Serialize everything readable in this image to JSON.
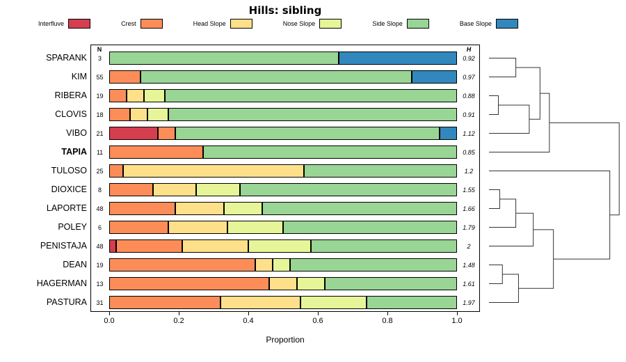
{
  "chart_data": {
    "type": "bar",
    "orientation": "horizontal",
    "stacked": true,
    "title": "Hills: sibling",
    "xlabel": "Proportion",
    "xlim": [
      0,
      1
    ],
    "x_ticks": [
      "0.0",
      "0.2",
      "0.4",
      "0.6",
      "0.8",
      "1.0"
    ],
    "n_header": "N",
    "h_header": "H",
    "legend": [
      {
        "label": "Interfluve",
        "color": "#D53E4F"
      },
      {
        "label": "Crest",
        "color": "#FC8D59"
      },
      {
        "label": "Head Slope",
        "color": "#FEE08B"
      },
      {
        "label": "Nose Slope",
        "color": "#E6F598"
      },
      {
        "label": "Side Slope",
        "color": "#99D594"
      },
      {
        "label": "Base Slope",
        "color": "#3288BD"
      }
    ],
    "categories_note": "values are proportions per legend order: Interfluve, Crest, Head Slope, Nose Slope, Side Slope, Base Slope",
    "rows": [
      {
        "label": "SPARANK",
        "n": 3,
        "h": "0.92",
        "bold": false,
        "values": [
          0,
          0,
          0,
          0,
          0.66,
          0.34
        ]
      },
      {
        "label": "KIM",
        "n": 55,
        "h": "0.97",
        "bold": false,
        "values": [
          0,
          0.09,
          0,
          0,
          0.78,
          0.13
        ]
      },
      {
        "label": "RIBERA",
        "n": 19,
        "h": "0.88",
        "bold": false,
        "values": [
          0,
          0.05,
          0.05,
          0.06,
          0.84,
          0
        ]
      },
      {
        "label": "CLOVIS",
        "n": 18,
        "h": "0.91",
        "bold": false,
        "values": [
          0,
          0.06,
          0.05,
          0.06,
          0.83,
          0
        ]
      },
      {
        "label": "VIBO",
        "n": 21,
        "h": "1.12",
        "bold": false,
        "values": [
          0.14,
          0.05,
          0,
          0,
          0.76,
          0.05
        ]
      },
      {
        "label": "TAPIA",
        "n": 11,
        "h": "0.85",
        "bold": true,
        "values": [
          0,
          0.27,
          0,
          0,
          0.73,
          0
        ]
      },
      {
        "label": "TULOSO",
        "n": 25,
        "h": "1.2",
        "bold": false,
        "values": [
          0,
          0.04,
          0.52,
          0,
          0.44,
          0
        ]
      },
      {
        "label": "DIOXICE",
        "n": 8,
        "h": "1.55",
        "bold": false,
        "values": [
          0,
          0.125,
          0.125,
          0.125,
          0.625,
          0
        ]
      },
      {
        "label": "LAPORTE",
        "n": 48,
        "h": "1.66",
        "bold": false,
        "values": [
          0,
          0.19,
          0.14,
          0.11,
          0.56,
          0
        ]
      },
      {
        "label": "POLEY",
        "n": 6,
        "h": "1.79",
        "bold": false,
        "values": [
          0,
          0.17,
          0.17,
          0.16,
          0.5,
          0
        ]
      },
      {
        "label": "PENISTAJA",
        "n": 48,
        "h": "2",
        "bold": false,
        "values": [
          0.02,
          0.19,
          0.19,
          0.18,
          0.42,
          0
        ]
      },
      {
        "label": "DEAN",
        "n": 19,
        "h": "1.48",
        "bold": false,
        "values": [
          0,
          0.42,
          0.05,
          0.05,
          0.48,
          0
        ]
      },
      {
        "label": "HAGERMAN",
        "n": 13,
        "h": "1.61",
        "bold": false,
        "values": [
          0,
          0.46,
          0.08,
          0.08,
          0.38,
          0
        ]
      },
      {
        "label": "PASTURA",
        "n": 31,
        "h": "1.97",
        "bold": false,
        "values": [
          0,
          0.32,
          0.23,
          0.19,
          0.26,
          0
        ]
      }
    ],
    "dendrogram": {
      "note": "hclust-style merges: negative = 1-based leaf index (top to bottom), positive = prior merge number; third value = normalized merge height",
      "merges": [
        [
          -3,
          -4,
          0.07
        ],
        [
          -1,
          -2,
          0.2
        ],
        [
          1,
          -5,
          0.3
        ],
        [
          2,
          3,
          0.38
        ],
        [
          4,
          -6,
          0.45
        ],
        [
          -8,
          -9,
          0.08
        ],
        [
          6,
          -10,
          0.2
        ],
        [
          7,
          -11,
          0.33
        ],
        [
          -12,
          -13,
          0.1
        ],
        [
          9,
          -14,
          0.22
        ],
        [
          8,
          10,
          0.48
        ],
        [
          11,
          -7,
          0.9
        ],
        [
          5,
          12,
          0.97
        ]
      ]
    }
  }
}
